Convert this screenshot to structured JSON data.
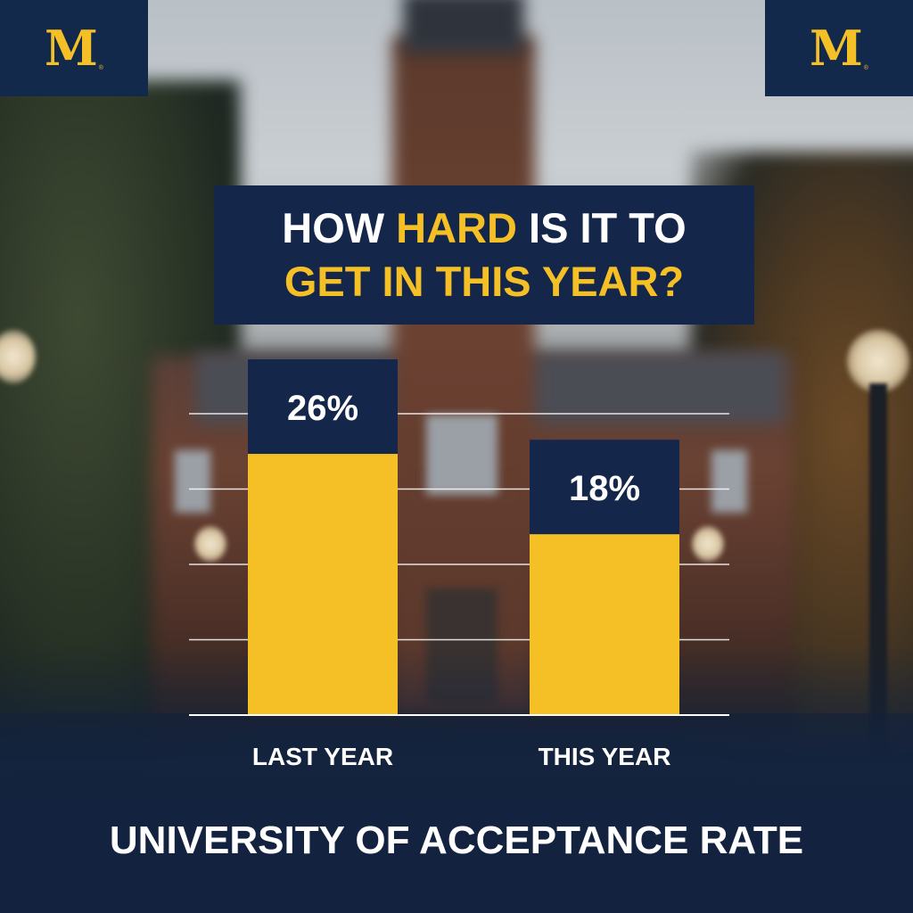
{
  "title": {
    "line1": [
      {
        "text": "HOW ",
        "highlight": false
      },
      {
        "text": "HARD",
        "highlight": true
      },
      {
        "text": " IS IT TO",
        "highlight": false
      }
    ],
    "line2": [
      {
        "text": "GET IN THIS YEAR?",
        "highlight": true
      }
    ]
  },
  "logos": {
    "left_text": "M",
    "right_text": "M",
    "mark": "®"
  },
  "colors": {
    "navy": "#14264a",
    "maize": "#f5bf26",
    "white": "#ffffff"
  },
  "chart_data": {
    "type": "bar",
    "categories": [
      "LAST YEAR",
      "THIS YEAR"
    ],
    "values": [
      26,
      18
    ],
    "value_labels": [
      "26%",
      "18%"
    ],
    "ylim": [
      0,
      30
    ],
    "grid": true,
    "legend": "none"
  },
  "footer": {
    "text": "UNIVERSITY OF ACCEPTANCE RATE"
  }
}
